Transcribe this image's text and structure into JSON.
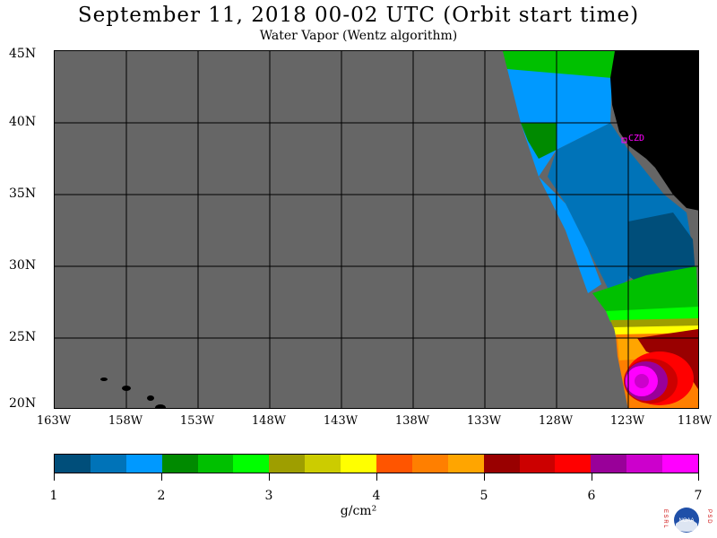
{
  "header": {
    "title": "September 11, 2018  00-02 UTC  (Orbit start time)",
    "subtitle": "Water Vapor (Wentz algorithm)"
  },
  "map": {
    "lat_labels": [
      "45N",
      "40N",
      "35N",
      "30N",
      "25N",
      "20N"
    ],
    "lon_labels": [
      "163W",
      "158W",
      "153W",
      "148W",
      "143W",
      "138W",
      "133W",
      "128W",
      "123W",
      "118W"
    ],
    "station_label": "CZD",
    "colors": {
      "no_data": "#666666",
      "land": "#000000",
      "station": "#ff00ff"
    }
  },
  "colorbar": {
    "tick_labels": [
      "1",
      "2",
      "3",
      "4",
      "5",
      "6",
      "7"
    ],
    "units": "g/cm²",
    "colors": [
      "#004e7a",
      "#0073b8",
      "#0099ff",
      "#008a00",
      "#00c000",
      "#00ff00",
      "#9e9e00",
      "#cccc00",
      "#ffff00",
      "#ff5500",
      "#ff7f00",
      "#ffa500",
      "#990000",
      "#cc0000",
      "#ff0000",
      "#990099",
      "#cc00cc",
      "#ff00ff"
    ]
  },
  "logo": {
    "left_letters": "E S R L",
    "right_letters": "P S D",
    "center_text": "NOAA"
  }
}
